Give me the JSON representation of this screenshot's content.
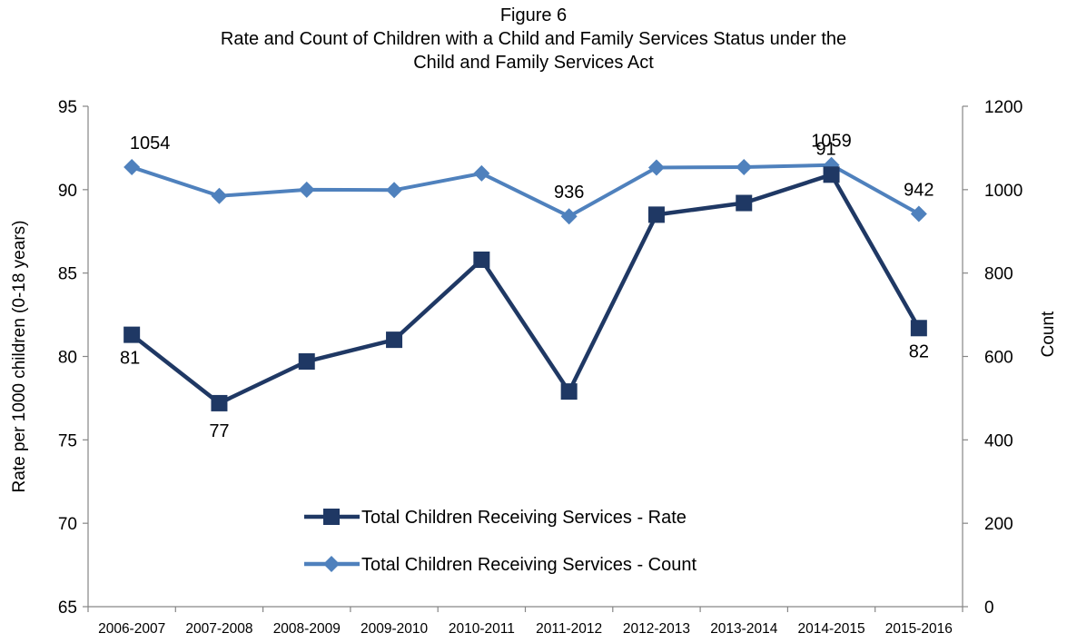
{
  "title": {
    "line1": "Figure 6",
    "line2": "Rate and Count of Children with a Child and Family Services Status under the",
    "line3": "Child and Family Services Act"
  },
  "chart_data": {
    "type": "line",
    "categories": [
      "2006-2007",
      "2007-2008",
      "2008-2009",
      "2009-2010",
      "2010-2011",
      "2011-2012",
      "2012-2013",
      "2013-2014",
      "2014-2015",
      "2015-2016"
    ],
    "series": [
      {
        "name": "Total Children Receiving Services - Rate",
        "axis": "left",
        "color": "#1f3864",
        "marker": "square",
        "values": [
          81.3,
          77.2,
          79.7,
          81.0,
          85.8,
          77.9,
          88.5,
          89.2,
          90.9,
          81.7
        ],
        "data_labels": [
          "81",
          "77",
          "",
          "",
          "",
          "",
          "",
          "",
          "91",
          "82"
        ]
      },
      {
        "name": "Total Children Receiving Services - Count",
        "axis": "right",
        "color": "#4f81bd",
        "marker": "diamond",
        "values": [
          1054,
          985,
          1000,
          999,
          1039,
          936,
          1053,
          1054,
          1059,
          942
        ],
        "data_labels": [
          "1054",
          "",
          "",
          "",
          "",
          "936",
          "",
          "",
          "1059",
          "942"
        ]
      }
    ],
    "y_left": {
      "label": "Rate per 1000 children (0-18  years)",
      "min": 65,
      "max": 95,
      "step": 5,
      "ticks": [
        "65",
        "70",
        "75",
        "80",
        "85",
        "90",
        "95"
      ]
    },
    "y_right": {
      "label": "Count",
      "min": 0,
      "max": 1200,
      "step": 200,
      "ticks": [
        "0",
        "200",
        "400",
        "600",
        "800",
        "1000",
        "1200"
      ]
    },
    "grid": false,
    "legend": "center-lower"
  }
}
